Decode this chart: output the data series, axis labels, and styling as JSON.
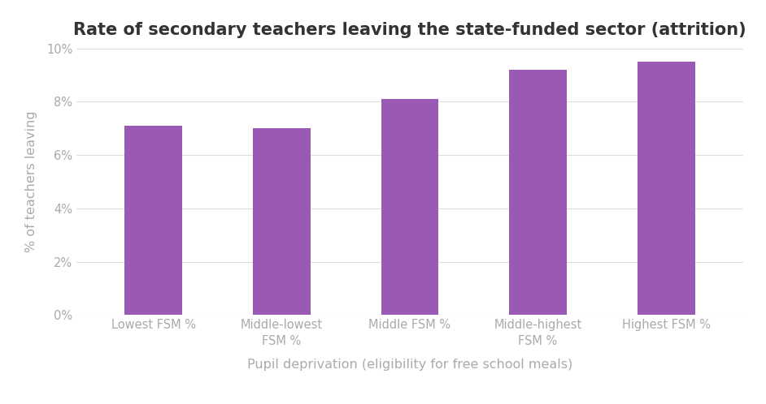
{
  "title": "Rate of secondary teachers leaving the state-funded sector (attrition)",
  "categories": [
    "Lowest FSM %",
    "Middle-lowest\nFSM %",
    "Middle FSM %",
    "Middle-highest\nFSM %",
    "Highest FSM %"
  ],
  "values": [
    0.071,
    0.07,
    0.081,
    0.092,
    0.095
  ],
  "bar_color": "#9B59B6",
  "xlabel": "Pupil deprivation (eligibility for free school meals)",
  "ylabel": "% of teachers leaving",
  "ylim": [
    0,
    0.1
  ],
  "yticks": [
    0,
    0.02,
    0.04,
    0.06,
    0.08,
    0.1
  ],
  "background_color": "#ffffff",
  "title_fontsize": 15,
  "label_fontsize": 11.5,
  "tick_fontsize": 10.5,
  "title_color": "#333333",
  "axis_color": "#aaaaaa",
  "grid_color": "#dddddd"
}
